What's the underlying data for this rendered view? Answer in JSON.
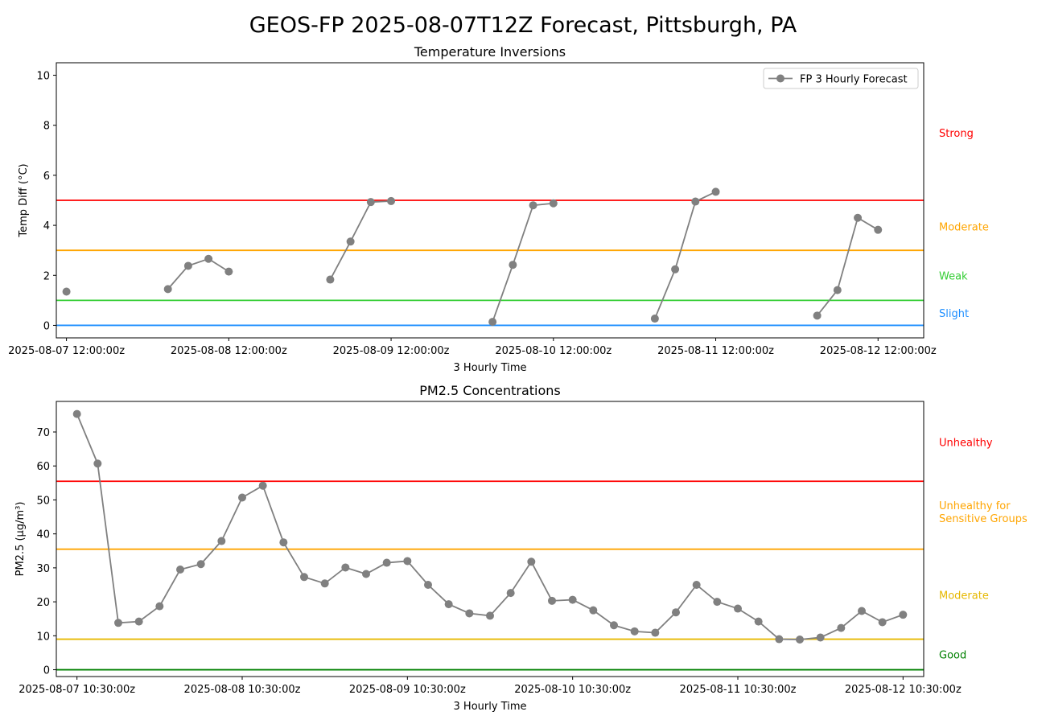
{
  "figure_title": "GEOS-FP 2025-08-07T12Z Forecast, Pittsburgh, PA",
  "chart_data": [
    {
      "type": "line",
      "title": "Temperature Inversions",
      "xlabel": "3 Hourly Time",
      "ylabel": "Temp Diff (°C)",
      "ylim": [
        -0.5,
        10.5
      ],
      "yticks": [
        0,
        2,
        4,
        6,
        8,
        10
      ],
      "xlim": [
        -0.5,
        42.25
      ],
      "x_tick_positions": [
        0,
        8,
        16,
        24,
        32,
        40
      ],
      "x_tick_labels": [
        "2025-08-07 12:00:00z",
        "2025-08-08 12:00:00z",
        "2025-08-09 12:00:00z",
        "2025-08-10 12:00:00z",
        "2025-08-11 12:00:00z",
        "2025-08-12 12:00:00z"
      ],
      "grid": false,
      "legend_position": "top-right",
      "series": [
        {
          "name": "FP 3 Hourly Forecast",
          "color": "#808080",
          "x": [
            0,
            5,
            6,
            7,
            8,
            13,
            14,
            15,
            16,
            21,
            22,
            23,
            24,
            29,
            30,
            31,
            32,
            37,
            38,
            39,
            40
          ],
          "values": [
            1.35,
            1.45,
            2.38,
            2.66,
            2.15,
            1.83,
            3.35,
            4.93,
            4.97,
            0.14,
            2.42,
            4.8,
            4.88,
            0.27,
            2.24,
            4.95,
            5.34,
            0.39,
            1.41,
            4.3,
            3.82
          ],
          "segments": [
            [
              0,
              0
            ],
            [
              5,
              8
            ],
            [
              13,
              16
            ],
            [
              21,
              24
            ],
            [
              29,
              32
            ],
            [
              37,
              40
            ]
          ]
        }
      ],
      "thresholds": [
        {
          "value": 0,
          "color": "#1e8fff"
        },
        {
          "value": 1,
          "color": "#32cd32"
        },
        {
          "value": 3,
          "color": "#ffa500"
        },
        {
          "value": 5,
          "color": "#ff0000"
        }
      ],
      "categories_labels": [
        {
          "text": "Strong",
          "at": 7.7,
          "color": "#ff0000"
        },
        {
          "text": "Moderate",
          "at": 3.95,
          "color": "#ffa500"
        },
        {
          "text": "Weak",
          "at": 2.0,
          "color": "#32cd32"
        },
        {
          "text": "Slight",
          "at": 0.5,
          "color": "#1e8fff"
        }
      ]
    },
    {
      "type": "line",
      "title": "PM2.5 Concentrations",
      "xlabel": "3 Hourly Time",
      "ylabel": "PM2.5 (µg/m³)",
      "ylim": [
        -2,
        79
      ],
      "yticks": [
        0,
        10,
        20,
        30,
        40,
        50,
        60,
        70
      ],
      "xlim": [
        -1,
        41
      ],
      "x_tick_positions": [
        0,
        8,
        16,
        24,
        32,
        40
      ],
      "x_tick_labels": [
        "2025-08-07 10:30:00z",
        "2025-08-08 10:30:00z",
        "2025-08-09 10:30:00z",
        "2025-08-10 10:30:00z",
        "2025-08-11 10:30:00z",
        "2025-08-12 10:30:00z"
      ],
      "grid": false,
      "series": [
        {
          "name": "",
          "color": "#808080",
          "x": [
            0,
            1,
            2,
            3,
            4,
            5,
            6,
            7,
            8,
            9,
            10,
            11,
            12,
            13,
            14,
            15,
            16,
            17,
            18,
            19,
            20,
            21,
            22,
            23,
            24,
            25,
            26,
            27,
            28,
            29,
            30,
            31,
            32,
            33,
            34,
            35,
            36,
            37,
            38,
            39,
            40
          ],
          "values": [
            75.3,
            60.7,
            13.8,
            14.2,
            18.7,
            29.5,
            31.1,
            37.9,
            50.7,
            54.2,
            37.5,
            27.3,
            25.4,
            30.1,
            28.2,
            31.5,
            32.0,
            25.0,
            19.3,
            16.6,
            15.9,
            22.6,
            31.8,
            20.3,
            20.6,
            17.5,
            13.1,
            11.3,
            10.9,
            16.9,
            25.0,
            20.0,
            18.0,
            14.2,
            9.0,
            8.9,
            9.5,
            12.3,
            17.3,
            14.0,
            16.2
          ],
          "segments": [
            [
              0,
              40
            ]
          ]
        }
      ],
      "thresholds": [
        {
          "value": 0,
          "color": "#008000"
        },
        {
          "value": 9,
          "color": "#e6b800"
        },
        {
          "value": 35.5,
          "color": "#ffa500"
        },
        {
          "value": 55.5,
          "color": "#ff0000"
        }
      ],
      "categories_labels": [
        {
          "text": "Unhealthy",
          "at": 67,
          "color": "#ff0000"
        },
        {
          "text": "Unhealthy for\nSensitive Groups",
          "at": 46.5,
          "color": "#ffa500"
        },
        {
          "text": "Moderate",
          "at": 22,
          "color": "#e6b800"
        },
        {
          "text": "Good",
          "at": 4.5,
          "color": "#008000"
        }
      ]
    }
  ]
}
